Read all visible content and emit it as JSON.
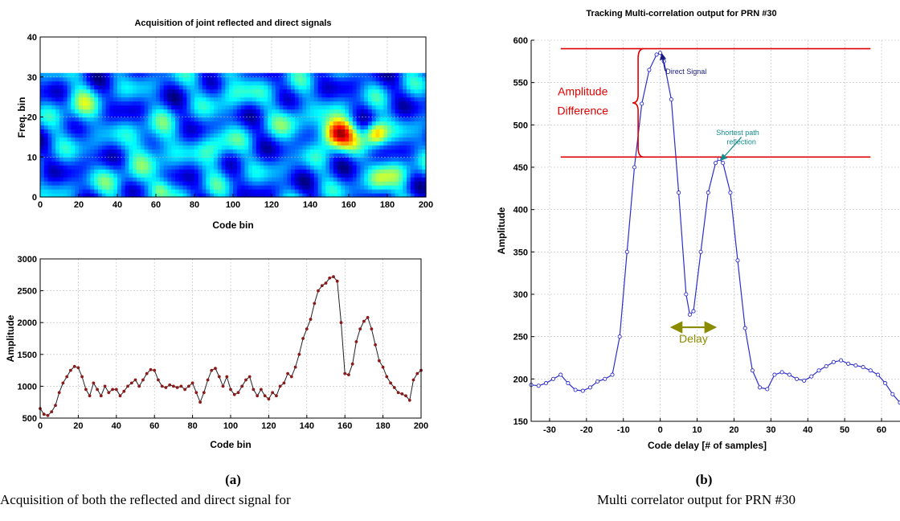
{
  "panels": {
    "a": {
      "letter": "(a)",
      "caption": "Acquisition of both the reflected and direct signal for"
    },
    "b": {
      "letter": "(b)",
      "caption": "Multi correlator output for PRN #30"
    }
  },
  "chart_data": [
    {
      "type": "heatmap",
      "title": "Acquisition of joint reflected and direct signals",
      "xlabel": "Code bin",
      "ylabel": "Freq. bin",
      "xlim": [
        0,
        200
      ],
      "ylim": [
        0,
        40
      ],
      "data_extent_y": [
        0,
        31
      ],
      "xticks": [
        0,
        20,
        40,
        60,
        80,
        100,
        120,
        140,
        160,
        180,
        200
      ],
      "yticks": [
        0,
        10,
        20,
        30,
        40
      ],
      "grid": true,
      "colormap": "jet",
      "background_level": 0.22,
      "blobs": [
        {
          "x": 154,
          "y": 16,
          "sx": 6,
          "sy": 2.6,
          "amp": 0.78
        },
        {
          "x": 174,
          "y": 16,
          "sx": 4,
          "sy": 2.2,
          "amp": 0.5
        },
        {
          "x": 58,
          "y": 13,
          "sx": 7,
          "sy": 4,
          "amp": 0.22
        },
        {
          "x": 20,
          "y": 22,
          "sx": 6,
          "sy": 4,
          "amp": 0.2
        },
        {
          "x": 92,
          "y": 12,
          "sx": 6,
          "sy": 4,
          "amp": 0.2
        },
        {
          "x": 62,
          "y": 2,
          "sx": 4,
          "sy": 2,
          "amp": 0.28
        },
        {
          "x": 100,
          "y": 27,
          "sx": 8,
          "sy": 3,
          "amp": 0.16
        },
        {
          "x": 130,
          "y": 20,
          "sx": 6,
          "sy": 4,
          "amp": 0.15
        },
        {
          "x": 186,
          "y": 6,
          "sx": 6,
          "sy": 3,
          "amp": 0.18
        },
        {
          "x": 40,
          "y": 4,
          "sx": 6,
          "sy": 3,
          "amp": 0.14
        },
        {
          "x": 175,
          "y": 4,
          "sx": 4,
          "sy": 3,
          "amp": 0.22
        }
      ]
    },
    {
      "type": "line",
      "title": "",
      "xlabel": "Code bin",
      "ylabel": "Amplitude",
      "xlim": [
        0,
        200
      ],
      "ylim": [
        500,
        3000
      ],
      "xticks": [
        0,
        20,
        40,
        60,
        80,
        100,
        120,
        140,
        160,
        180,
        200
      ],
      "yticks": [
        500,
        1000,
        1500,
        2000,
        2500,
        3000
      ],
      "grid": true,
      "line_color": "#222222",
      "marker_color": "#8b1a1a",
      "series": [
        {
          "x": [
            0,
            2,
            4,
            6,
            8,
            10,
            12,
            14,
            16,
            18,
            20,
            22,
            24,
            26,
            28,
            30,
            32,
            34,
            36,
            38,
            40,
            42,
            44,
            46,
            48,
            50,
            52,
            54,
            56,
            58,
            60,
            62,
            64,
            66,
            68,
            70,
            72,
            74,
            76,
            78,
            80,
            82,
            84,
            86,
            88,
            90,
            92,
            94,
            96,
            98,
            100,
            102,
            104,
            106,
            108,
            110,
            112,
            114,
            116,
            118,
            120,
            122,
            124,
            126,
            128,
            130,
            132,
            134,
            136,
            138,
            140,
            142,
            144,
            146,
            148,
            150,
            152,
            154,
            156,
            158,
            160,
            162,
            164,
            166,
            168,
            170,
            172,
            174,
            176,
            178,
            180,
            182,
            184,
            186,
            188,
            190,
            192,
            194,
            196,
            198,
            200
          ],
          "values": [
            650,
            560,
            540,
            600,
            700,
            900,
            1050,
            1150,
            1250,
            1310,
            1290,
            1150,
            950,
            850,
            1050,
            950,
            850,
            1000,
            900,
            950,
            950,
            850,
            920,
            1000,
            1050,
            1100,
            1000,
            1100,
            1200,
            1260,
            1250,
            1100,
            1000,
            980,
            1020,
            1000,
            980,
            1000,
            950,
            1000,
            1050,
            900,
            750,
            900,
            1100,
            1250,
            1280,
            1150,
            1000,
            1150,
            950,
            870,
            900,
            1000,
            1100,
            1150,
            950,
            850,
            950,
            850,
            800,
            900,
            850,
            1000,
            1050,
            1200,
            1150,
            1300,
            1500,
            1750,
            1900,
            2050,
            2300,
            2500,
            2580,
            2620,
            2700,
            2720,
            2650,
            2000,
            1200,
            1180,
            1350,
            1700,
            1900,
            2020,
            2080,
            1900,
            1650,
            1400,
            1300,
            1150,
            1050,
            980,
            900,
            880,
            850,
            780,
            1100,
            1200,
            1250
          ]
        }
      ]
    },
    {
      "type": "line",
      "title": "Tracking Multi-correlation output for PRN #30",
      "xlabel": "Code delay [# of samples]",
      "ylabel": "Amplitude",
      "xlim": [
        -35,
        65
      ],
      "ylim": [
        150,
        600
      ],
      "xticks": [
        -30,
        -20,
        -10,
        0,
        10,
        20,
        30,
        40,
        50,
        60
      ],
      "yticks": [
        150,
        200,
        250,
        300,
        350,
        400,
        450,
        500,
        550,
        600
      ],
      "grid": true,
      "line_color": "#2d2dcc",
      "series": [
        {
          "x": [
            -35,
            -33,
            -31,
            -29,
            -27,
            -25,
            -23,
            -21,
            -19,
            -17,
            -15,
            -13,
            -11,
            -9,
            -7,
            -5,
            -3,
            -1,
            0,
            1,
            3,
            5,
            7,
            8,
            9,
            11,
            13,
            15,
            16,
            17,
            19,
            21,
            23,
            25,
            27,
            29,
            31,
            33,
            35,
            37,
            39,
            41,
            43,
            45,
            47,
            49,
            51,
            53,
            55,
            57,
            59,
            61,
            63,
            65
          ],
          "values": [
            193,
            192,
            195,
            200,
            205,
            195,
            187,
            186,
            190,
            197,
            200,
            205,
            250,
            350,
            450,
            525,
            565,
            583,
            585,
            575,
            530,
            420,
            300,
            276,
            280,
            350,
            420,
            455,
            460,
            455,
            420,
            340,
            260,
            210,
            190,
            188,
            205,
            208,
            205,
            200,
            198,
            203,
            210,
            215,
            220,
            222,
            218,
            216,
            214,
            210,
            205,
            195,
            182,
            172
          ]
        }
      ],
      "annotations": [
        {
          "kind": "hline",
          "y": 590,
          "x": [
            -27,
            57
          ],
          "color": "#e00000"
        },
        {
          "kind": "hline",
          "y": 462,
          "x": [
            -27,
            57
          ],
          "color": "#e00000"
        },
        {
          "kind": "brace",
          "x": -6,
          "y": [
            462,
            590
          ],
          "color": "#e00000"
        },
        {
          "kind": "text",
          "text": "Amplitude",
          "x": -21,
          "y": 535,
          "color": "#e00000"
        },
        {
          "kind": "text",
          "text": "Difference",
          "x": -21,
          "y": 512,
          "color": "#e00000"
        },
        {
          "kind": "text",
          "text": "Direct Signal",
          "x": 7,
          "y": 560,
          "color": "#1a1a80",
          "arrow_to": [
            0,
            586
          ]
        },
        {
          "kind": "text",
          "text": "Shortest path",
          "x": 21,
          "y": 488,
          "color": "#138b8b"
        },
        {
          "kind": "text",
          "text": "reflection",
          "x": 22,
          "y": 477,
          "color": "#138b8b",
          "arrow_to": [
            16,
            460
          ]
        },
        {
          "kind": "darrow",
          "x": [
            3,
            15
          ],
          "y": 261,
          "color": "#8b8b00"
        },
        {
          "kind": "text",
          "text": "Delay",
          "x": 9,
          "y": 243,
          "color": "#8b8b00"
        }
      ]
    }
  ]
}
